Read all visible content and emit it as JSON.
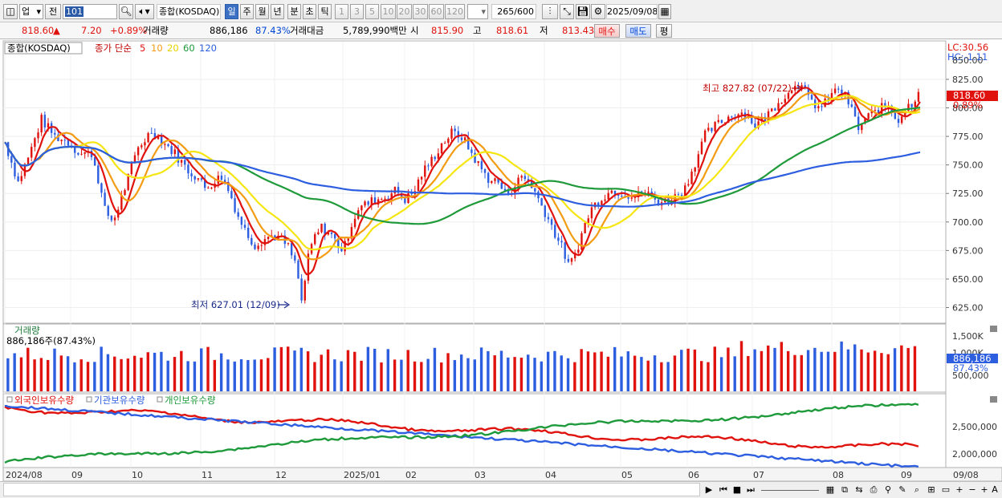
{
  "toolbar": {
    "market": "업",
    "prev_label": "전",
    "code": "101",
    "index_name": "종합(KOSDAQ)",
    "periods": [
      "일",
      "주",
      "월",
      "년",
      "분",
      "초",
      "틱"
    ],
    "selected_period": "일",
    "intervals": [
      "1",
      "3",
      "5",
      "10",
      "20",
      "30",
      "60",
      "120"
    ],
    "count": "265",
    "count_total": "/600",
    "date": "2025/09/08"
  },
  "quote": {
    "price": "818.60",
    "change": "7.20",
    "change_pct": "+0.89%",
    "volume_label": "거래량",
    "volume": "886,186",
    "volume_ratio": "87.43%",
    "amount_label": "거래대금",
    "amount": "5,789,990백만",
    "open_label": "시",
    "open": "815.90",
    "high_label": "고",
    "high": "818.61",
    "low_label": "저",
    "low": "813.43",
    "buy_label": "매수",
    "sell_label": "매도",
    "eval_label": "평"
  },
  "price_panel": {
    "title": "종합(KOSDAQ)",
    "ma_label": "종가 단순",
    "ma_periods": [
      "5",
      "10",
      "20",
      "60",
      "120"
    ],
    "ma_colors": [
      "#e0120d",
      "#f39c12",
      "#f5e612",
      "#1e9a3a",
      "#2e5ee0"
    ],
    "lc": "LC:30.56",
    "hc": "HC:-1.11",
    "last_price_tag": "818.60",
    "last_pct_tag": "0.89%",
    "high_note": "최고 827.82 (07/22)",
    "low_note": "최저 627.01 (12/09)",
    "y_ticks": [
      "825.00",
      "800.00",
      "775.00",
      "750.00",
      "725.00",
      "700.00",
      "675.00",
      "650.00",
      "625.00"
    ],
    "hidden_top_tick": "850.00"
  },
  "volume_panel": {
    "title": "거래량",
    "info": "886,186주(87.43%)",
    "y_ticks": [
      "1,500K",
      "1,000K"
    ],
    "last_tag": "886,186",
    "last_pct": "87.43%",
    "extra_tick": "500,000"
  },
  "holdings_panel": {
    "legend": [
      "외국인보유수량",
      "기관보유수량",
      "개인보유수량"
    ],
    "colors": [
      "#e0120d",
      "#2e5ee0",
      "#1e9a3a"
    ],
    "y_ticks": [
      "2,500,000",
      "2,000,000"
    ]
  },
  "x_axis": {
    "labels": [
      "2024/08",
      "09",
      "10",
      "11",
      "12",
      "2025/01",
      "02",
      "03",
      "04",
      "05",
      "06",
      "07",
      "08",
      "09"
    ],
    "last_date": "09/08"
  },
  "chart_data": {
    "type": "candlestick",
    "title": "종합(KOSDAQ)",
    "ylim": [
      612,
      858
    ],
    "moving_averages": [
      "5",
      "10",
      "20",
      "60",
      "120"
    ],
    "key_levels": {
      "high": 827.82,
      "high_date": "07/22",
      "low": 627.01,
      "low_date": "12/09"
    },
    "price_path": [
      [
        0,
        770
      ],
      [
        8,
        735
      ],
      [
        15,
        760
      ],
      [
        22,
        790
      ],
      [
        30,
        775
      ],
      [
        38,
        770
      ],
      [
        45,
        760
      ],
      [
        52,
        760
      ],
      [
        55,
        745
      ],
      [
        60,
        710
      ],
      [
        65,
        700
      ],
      [
        72,
        730
      ],
      [
        80,
        765
      ],
      [
        88,
        780
      ],
      [
        95,
        770
      ],
      [
        102,
        760
      ],
      [
        110,
        745
      ],
      [
        115,
        740
      ],
      [
        120,
        730
      ],
      [
        125,
        735
      ],
      [
        130,
        740
      ],
      [
        135,
        725
      ],
      [
        140,
        705
      ],
      [
        145,
        690
      ],
      [
        150,
        680
      ],
      [
        155,
        685
      ],
      [
        160,
        688
      ],
      [
        165,
        686
      ],
      [
        170,
        678
      ],
      [
        175,
        660
      ],
      [
        178,
        630
      ],
      [
        182,
        668
      ],
      [
        185,
        685
      ],
      [
        190,
        695
      ],
      [
        195,
        690
      ],
      [
        200,
        680
      ],
      [
        203,
        674
      ],
      [
        207,
        695
      ],
      [
        212,
        712
      ],
      [
        220,
        718
      ],
      [
        228,
        722
      ],
      [
        235,
        728
      ],
      [
        240,
        720
      ],
      [
        245,
        725
      ],
      [
        250,
        742
      ],
      [
        255,
        752
      ],
      [
        262,
        768
      ],
      [
        268,
        778
      ],
      [
        274,
        775
      ],
      [
        280,
        760
      ],
      [
        285,
        748
      ],
      [
        290,
        738
      ],
      [
        296,
        735
      ],
      [
        300,
        724
      ],
      [
        305,
        730
      ],
      [
        310,
        740
      ],
      [
        315,
        735
      ],
      [
        320,
        720
      ],
      [
        325,
        706
      ],
      [
        330,
        690
      ],
      [
        335,
        675
      ],
      [
        338,
        662
      ],
      [
        340,
        665
      ],
      [
        344,
        680
      ],
      [
        348,
        698
      ],
      [
        352,
        712
      ],
      [
        358,
        722
      ],
      [
        365,
        728
      ],
      [
        372,
        725
      ],
      [
        378,
        722
      ],
      [
        384,
        726
      ],
      [
        388,
        722
      ],
      [
        392,
        718
      ],
      [
        398,
        718
      ],
      [
        402,
        722
      ],
      [
        408,
        730
      ],
      [
        414,
        752
      ],
      [
        420,
        776
      ],
      [
        426,
        784
      ],
      [
        432,
        790
      ],
      [
        438,
        795
      ],
      [
        444,
        796
      ],
      [
        450,
        785
      ],
      [
        455,
        790
      ],
      [
        460,
        798
      ],
      [
        465,
        808
      ],
      [
        470,
        812
      ],
      [
        474,
        823
      ],
      [
        478,
        818
      ],
      [
        482,
        808
      ],
      [
        486,
        803
      ],
      [
        490,
        800
      ],
      [
        495,
        810
      ],
      [
        500,
        817
      ],
      [
        505,
        808
      ],
      [
        508,
        798
      ],
      [
        512,
        782
      ],
      [
        516,
        790
      ],
      [
        520,
        795
      ],
      [
        525,
        799
      ],
      [
        530,
        803
      ],
      [
        533,
        794
      ],
      [
        536,
        790
      ],
      [
        540,
        799
      ],
      [
        545,
        806
      ],
      [
        549,
        818.6
      ]
    ],
    "volume_note": "daily volume bars, red = up day, blue = down day"
  }
}
